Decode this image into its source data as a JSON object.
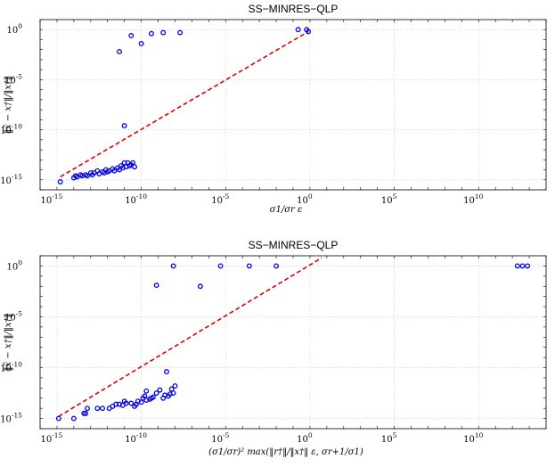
{
  "chart_data": [
    {
      "type": "scatter",
      "title": "SS−MINRES−QLP",
      "xlabel": "σ1/σr ε",
      "ylabel": "‖x̂ − x†‖/‖x†‖",
      "xscale": "log",
      "yscale": "log",
      "xlim_exp": [
        -16,
        14
      ],
      "ylim_exp": [
        -16,
        1
      ],
      "xticks_exp": [
        -15,
        -10,
        -5,
        0,
        5,
        10
      ],
      "yticks_exp": [
        -15,
        -10,
        -5,
        0
      ],
      "grid": true,
      "reference_line": {
        "style": "red dashed",
        "log_points": [
          [
            -14.8,
            -14.7
          ],
          [
            -0.1,
            -0.2
          ]
        ]
      },
      "series": [
        {
          "marker": "blue circle",
          "log_points": [
            [
              -14.8,
              -15.2
            ],
            [
              -14.0,
              -14.8
            ],
            [
              -13.9,
              -14.6
            ],
            [
              -13.8,
              -14.7
            ],
            [
              -13.6,
              -14.5
            ],
            [
              -13.5,
              -14.6
            ],
            [
              -13.3,
              -14.5
            ],
            [
              -13.2,
              -14.6
            ],
            [
              -13.0,
              -14.3
            ],
            [
              -12.9,
              -14.5
            ],
            [
              -12.8,
              -14.3
            ],
            [
              -12.6,
              -14.1
            ],
            [
              -12.5,
              -14.4
            ],
            [
              -12.3,
              -14.2
            ],
            [
              -12.2,
              -14.3
            ],
            [
              -12.1,
              -14.0
            ],
            [
              -12.0,
              -14.2
            ],
            [
              -11.9,
              -14.1
            ],
            [
              -11.7,
              -13.9
            ],
            [
              -11.6,
              -14.1
            ],
            [
              -11.4,
              -13.8
            ],
            [
              -11.3,
              -14.0
            ],
            [
              -11.2,
              -13.6
            ],
            [
              -11.1,
              -13.8
            ],
            [
              -11.0,
              -13.3
            ],
            [
              -10.9,
              -13.7
            ],
            [
              -10.8,
              -13.3
            ],
            [
              -10.7,
              -13.6
            ],
            [
              -10.6,
              -13.5
            ],
            [
              -10.5,
              -13.3
            ],
            [
              -10.4,
              -13.7
            ],
            [
              -11.0,
              -9.6
            ],
            [
              -11.3,
              -2.2
            ],
            [
              -10.6,
              -0.6
            ],
            [
              -10.0,
              -1.4
            ],
            [
              -9.4,
              -0.4
            ],
            [
              -8.7,
              -0.3
            ],
            [
              -7.7,
              -0.3
            ],
            [
              -0.7,
              0.0
            ],
            [
              -0.2,
              0.0
            ],
            [
              -0.1,
              -0.2
            ]
          ]
        }
      ]
    },
    {
      "type": "scatter",
      "title": "SS−MINRES−QLP",
      "xlabel": "(σ1/σr)² max(‖r†‖/‖x†‖ ε, σr+1/σ1)",
      "ylabel": "‖x̂ − x†‖/‖x†‖",
      "xscale": "log",
      "yscale": "log",
      "xlim_exp": [
        -16,
        14
      ],
      "ylim_exp": [
        -16,
        1
      ],
      "xticks_exp": [
        -15,
        -10,
        -5,
        0,
        5,
        10
      ],
      "yticks_exp": [
        -15,
        -10,
        -5,
        0
      ],
      "grid": true,
      "reference_line": {
        "style": "red dashed",
        "log_points": [
          [
            -14.9,
            -14.8
          ],
          [
            0.7,
            0.8
          ]
        ]
      },
      "series": [
        {
          "marker": "blue circle",
          "log_points": [
            [
              -14.9,
              -15.0
            ],
            [
              -14.0,
              -15.0
            ],
            [
              -13.4,
              -14.5
            ],
            [
              -13.3,
              -14.5
            ],
            [
              -13.2,
              -14.0
            ],
            [
              -12.6,
              -14.0
            ],
            [
              -12.3,
              -14.0
            ],
            [
              -11.9,
              -14.0
            ],
            [
              -11.7,
              -13.8
            ],
            [
              -11.5,
              -13.6
            ],
            [
              -11.3,
              -13.6
            ],
            [
              -11.1,
              -13.7
            ],
            [
              -11.0,
              -13.3
            ],
            [
              -10.9,
              -13.5
            ],
            [
              -10.6,
              -13.5
            ],
            [
              -10.4,
              -13.8
            ],
            [
              -10.3,
              -13.6
            ],
            [
              -10.2,
              -13.3
            ],
            [
              -10.0,
              -13.4
            ],
            [
              -9.9,
              -13.0
            ],
            [
              -9.8,
              -12.8
            ],
            [
              -9.7,
              -13.2
            ],
            [
              -9.5,
              -13.1
            ],
            [
              -9.4,
              -13.0
            ],
            [
              -9.3,
              -12.9
            ],
            [
              -9.1,
              -12.5
            ],
            [
              -8.9,
              -12.2
            ],
            [
              -8.7,
              -13.0
            ],
            [
              -8.6,
              -12.7
            ],
            [
              -8.3,
              -12.6
            ],
            [
              -8.2,
              -12.1
            ],
            [
              -8.0,
              -11.8
            ],
            [
              -8.1,
              -12.5
            ],
            [
              -8.4,
              -12.8
            ],
            [
              -9.7,
              -12.3
            ],
            [
              -8.5,
              -10.4
            ],
            [
              -9.1,
              -1.9
            ],
            [
              -8.1,
              0.0
            ],
            [
              -6.5,
              -2.0
            ],
            [
              -5.3,
              0.0
            ],
            [
              -3.6,
              0.0
            ],
            [
              -2.0,
              0.0
            ],
            [
              12.3,
              0.0
            ],
            [
              12.6,
              0.0
            ],
            [
              12.9,
              0.0
            ]
          ]
        }
      ]
    }
  ]
}
